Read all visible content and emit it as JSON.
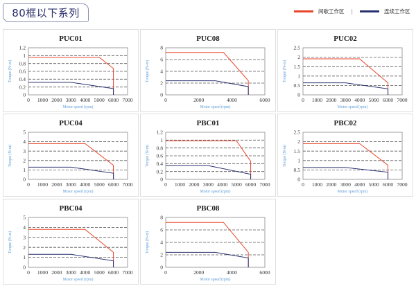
{
  "header": {
    "title": "80框以下系列",
    "legend": [
      {
        "label": "间歇工作区",
        "color": "#e8452c"
      },
      {
        "label": "连续工作区",
        "color": "#27306e"
      }
    ],
    "separator": "|"
  },
  "chart_data": [
    {
      "type": "line",
      "title": "PUC01",
      "xlabel": "Motor speed (rpm)",
      "ylabel": "Torque (N-m)",
      "xlim": [
        0,
        7000
      ],
      "xticks": [
        0,
        1000,
        2000,
        3000,
        4000,
        5000,
        6000,
        7000
      ],
      "ylim": [
        0,
        1.2
      ],
      "yticks": [
        0,
        0.2,
        0.4,
        0.6,
        0.8,
        1,
        1.2
      ],
      "grid": "dashed horizontal",
      "series": [
        {
          "color": "#e8452c",
          "x": [
            0,
            5000,
            6000,
            6000
          ],
          "y": [
            0.96,
            0.96,
            0.67,
            0
          ]
        },
        {
          "color": "#27306e",
          "x": [
            0,
            3000,
            6000,
            6000
          ],
          "y": [
            0.32,
            0.32,
            0.16,
            0
          ]
        }
      ]
    },
    {
      "type": "line",
      "title": "PUC08",
      "xlabel": "Motor speed (rpm)",
      "ylabel": "Torque (N-m)",
      "xlim": [
        0,
        6000
      ],
      "xticks": [
        0,
        2000,
        4000,
        6000
      ],
      "ylim": [
        0,
        8
      ],
      "yticks": [
        0,
        2,
        4,
        6,
        8
      ],
      "grid": "dashed horizontal",
      "series": [
        {
          "color": "#e8452c",
          "x": [
            0,
            3500,
            5000,
            5000
          ],
          "y": [
            7.2,
            7.2,
            2.4,
            0
          ]
        },
        {
          "color": "#27306e",
          "x": [
            0,
            3000,
            5000,
            5000
          ],
          "y": [
            2.4,
            2.4,
            1.4,
            0
          ]
        }
      ]
    },
    {
      "type": "line",
      "title": "PUC02",
      "xlabel": "Motor speed (rpm)",
      "ylabel": "Torque (N-m)",
      "xlim": [
        0,
        7000
      ],
      "xticks": [
        0,
        1000,
        2000,
        3000,
        4000,
        5000,
        6000,
        7000
      ],
      "ylim": [
        0,
        2.5
      ],
      "yticks": [
        0,
        0.5,
        1,
        1.5,
        2,
        2.5
      ],
      "grid": "dashed horizontal",
      "series": [
        {
          "color": "#e8452c",
          "x": [
            0,
            4000,
            6000,
            6000
          ],
          "y": [
            1.91,
            1.91,
            0.64,
            0
          ]
        },
        {
          "color": "#27306e",
          "x": [
            0,
            3000,
            6000,
            6000
          ],
          "y": [
            0.64,
            0.64,
            0.32,
            0
          ]
        }
      ]
    },
    {
      "type": "line",
      "title": "PUC04",
      "xlabel": "Motor speed (rpm)",
      "ylabel": "Torque (N-m)",
      "xlim": [
        0,
        7000
      ],
      "xticks": [
        0,
        1000,
        2000,
        3000,
        4000,
        5000,
        6000,
        7000
      ],
      "ylim": [
        0,
        5
      ],
      "yticks": [
        0,
        1,
        2,
        3,
        4,
        5
      ],
      "grid": "dashed horizontal",
      "series": [
        {
          "color": "#e8452c",
          "x": [
            0,
            4000,
            6000,
            6000
          ],
          "y": [
            3.8,
            3.8,
            1.5,
            0
          ]
        },
        {
          "color": "#27306e",
          "x": [
            0,
            3000,
            6000,
            6000
          ],
          "y": [
            1.3,
            1.3,
            0.65,
            0
          ]
        }
      ]
    },
    {
      "type": "line",
      "title": "PBC01",
      "xlabel": "Motor speed (rpm)",
      "ylabel": "Torque (N-m)",
      "xlim": [
        0,
        7000
      ],
      "xticks": [
        0,
        1000,
        2000,
        3000,
        4000,
        5000,
        6000,
        7000
      ],
      "ylim": [
        0,
        1.2
      ],
      "yticks": [
        0,
        0.2,
        0.4,
        0.6,
        0.8,
        1,
        1.2
      ],
      "grid": "dashed horizontal",
      "series": [
        {
          "color": "#e8452c",
          "x": [
            0,
            5000,
            6000,
            6000
          ],
          "y": [
            0.98,
            0.98,
            0.46,
            0
          ]
        },
        {
          "color": "#27306e",
          "x": [
            0,
            3000,
            6000,
            6000
          ],
          "y": [
            0.35,
            0.35,
            0.13,
            0
          ]
        }
      ]
    },
    {
      "type": "line",
      "title": "PBC02",
      "xlabel": "Motor speed (rpm)",
      "ylabel": "Torque (N-m)",
      "xlim": [
        0,
        7000
      ],
      "xticks": [
        0,
        1000,
        2000,
        3000,
        4000,
        5000,
        6000,
        7000
      ],
      "ylim": [
        0,
        2.5
      ],
      "yticks": [
        0,
        0.5,
        1,
        1.5,
        2,
        2.5
      ],
      "grid": "dashed horizontal",
      "series": [
        {
          "color": "#e8452c",
          "x": [
            0,
            4000,
            6000,
            6000
          ],
          "y": [
            1.9,
            1.9,
            0.75,
            0
          ]
        },
        {
          "color": "#27306e",
          "x": [
            0,
            3000,
            6000,
            6000
          ],
          "y": [
            0.63,
            0.63,
            0.38,
            0
          ]
        }
      ]
    },
    {
      "type": "line",
      "title": "PBC04",
      "xlabel": "Motor speed (rpm)",
      "ylabel": "Torque (N-m)",
      "xlim": [
        0,
        7000
      ],
      "xticks": [
        0,
        1000,
        2000,
        3000,
        4000,
        5000,
        6000,
        7000
      ],
      "ylim": [
        0,
        5
      ],
      "yticks": [
        0,
        1,
        2,
        3,
        4,
        5
      ],
      "grid": "dashed horizontal",
      "series": [
        {
          "color": "#e8452c",
          "x": [
            0,
            4000,
            6000,
            6000
          ],
          "y": [
            3.8,
            3.8,
            1.5,
            0
          ]
        },
        {
          "color": "#27306e",
          "x": [
            0,
            3000,
            6000,
            6000
          ],
          "y": [
            1.3,
            1.3,
            0.65,
            0
          ]
        }
      ]
    },
    {
      "type": "line",
      "title": "PBC08",
      "xlabel": "Motor speed (rpm)",
      "ylabel": "Torque (N-m)",
      "xlim": [
        0,
        6000
      ],
      "xticks": [
        0,
        2000,
        4000,
        6000
      ],
      "ylim": [
        0,
        8
      ],
      "yticks": [
        0,
        2,
        4,
        6,
        8
      ],
      "grid": "dashed horizontal",
      "series": [
        {
          "color": "#e8452c",
          "x": [
            0,
            3500,
            5000,
            5000
          ],
          "y": [
            7.2,
            7.2,
            2.4,
            0
          ]
        },
        {
          "color": "#27306e",
          "x": [
            0,
            3000,
            5000,
            5000
          ],
          "y": [
            2.4,
            2.4,
            1.5,
            0
          ]
        }
      ]
    }
  ]
}
